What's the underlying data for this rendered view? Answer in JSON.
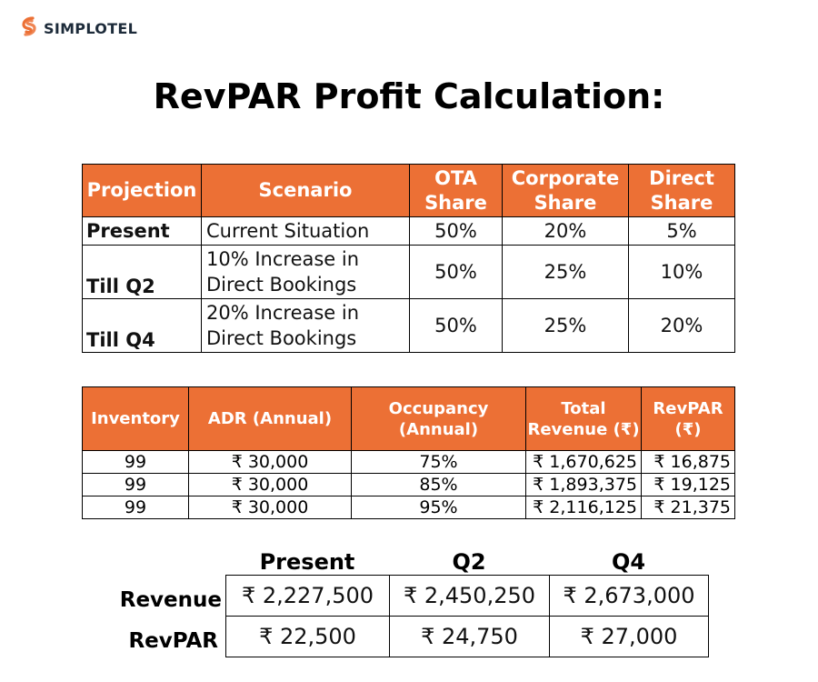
{
  "brand": {
    "name": "SIMPLOTEL",
    "icon": "simplotel-logo-icon",
    "color": "#ec7035"
  },
  "title": "RevPAR Profit Calculation:",
  "accent_color": "#ec7035",
  "table1": {
    "headers": {
      "projection": "Projection",
      "scenario": "Scenario",
      "ota": "OTA Share",
      "corporate": "Corporate Share",
      "direct": "Direct Share"
    },
    "rows": [
      {
        "projection": "Present",
        "scenario": "Current Situation",
        "ota": "50%",
        "corporate": "20%",
        "direct": "5%"
      },
      {
        "projection": "Till Q2",
        "scenario_l1": "10% Increase in",
        "scenario_l2": "Direct Bookings",
        "ota": "50%",
        "corporate": "25%",
        "direct": "10%"
      },
      {
        "projection": "Till Q4",
        "scenario_l1": "20% Increase in",
        "scenario_l2": "Direct Bookings",
        "ota": "50%",
        "corporate": "25%",
        "direct": "20%"
      }
    ]
  },
  "table2": {
    "headers": {
      "inventory": "Inventory",
      "adr": "ADR (Annual)",
      "occupancy": "Occupancy (Annual)",
      "revenue": "Total Revenue (₹)",
      "revpar": "RevPAR (₹)"
    },
    "rows": [
      {
        "inventory": "99",
        "adr": "₹ 30,000",
        "occupancy": "75%",
        "revenue": "₹ 1,670,625",
        "revpar": "₹ 16,875"
      },
      {
        "inventory": "99",
        "adr": "₹ 30,000",
        "occupancy": "85%",
        "revenue": "₹ 1,893,375",
        "revpar": "₹ 19,125"
      },
      {
        "inventory": "99",
        "adr": "₹ 30,000",
        "occupancy": "95%",
        "revenue": "₹ 2,116,125",
        "revpar": "₹ 21,375"
      }
    ]
  },
  "table3": {
    "headers": {
      "present": "Present",
      "q2": "Q2",
      "q4": "Q4"
    },
    "row_labels": {
      "revenue": "Revenue",
      "revpar": "RevPAR"
    },
    "revenue": {
      "present": "₹ 2,227,500",
      "q2": "₹ 2,450,250",
      "q4": "₹ 2,673,000"
    },
    "revpar": {
      "present": "₹ 22,500",
      "q2": "₹ 24,750",
      "q4": "₹ 27,000"
    }
  }
}
